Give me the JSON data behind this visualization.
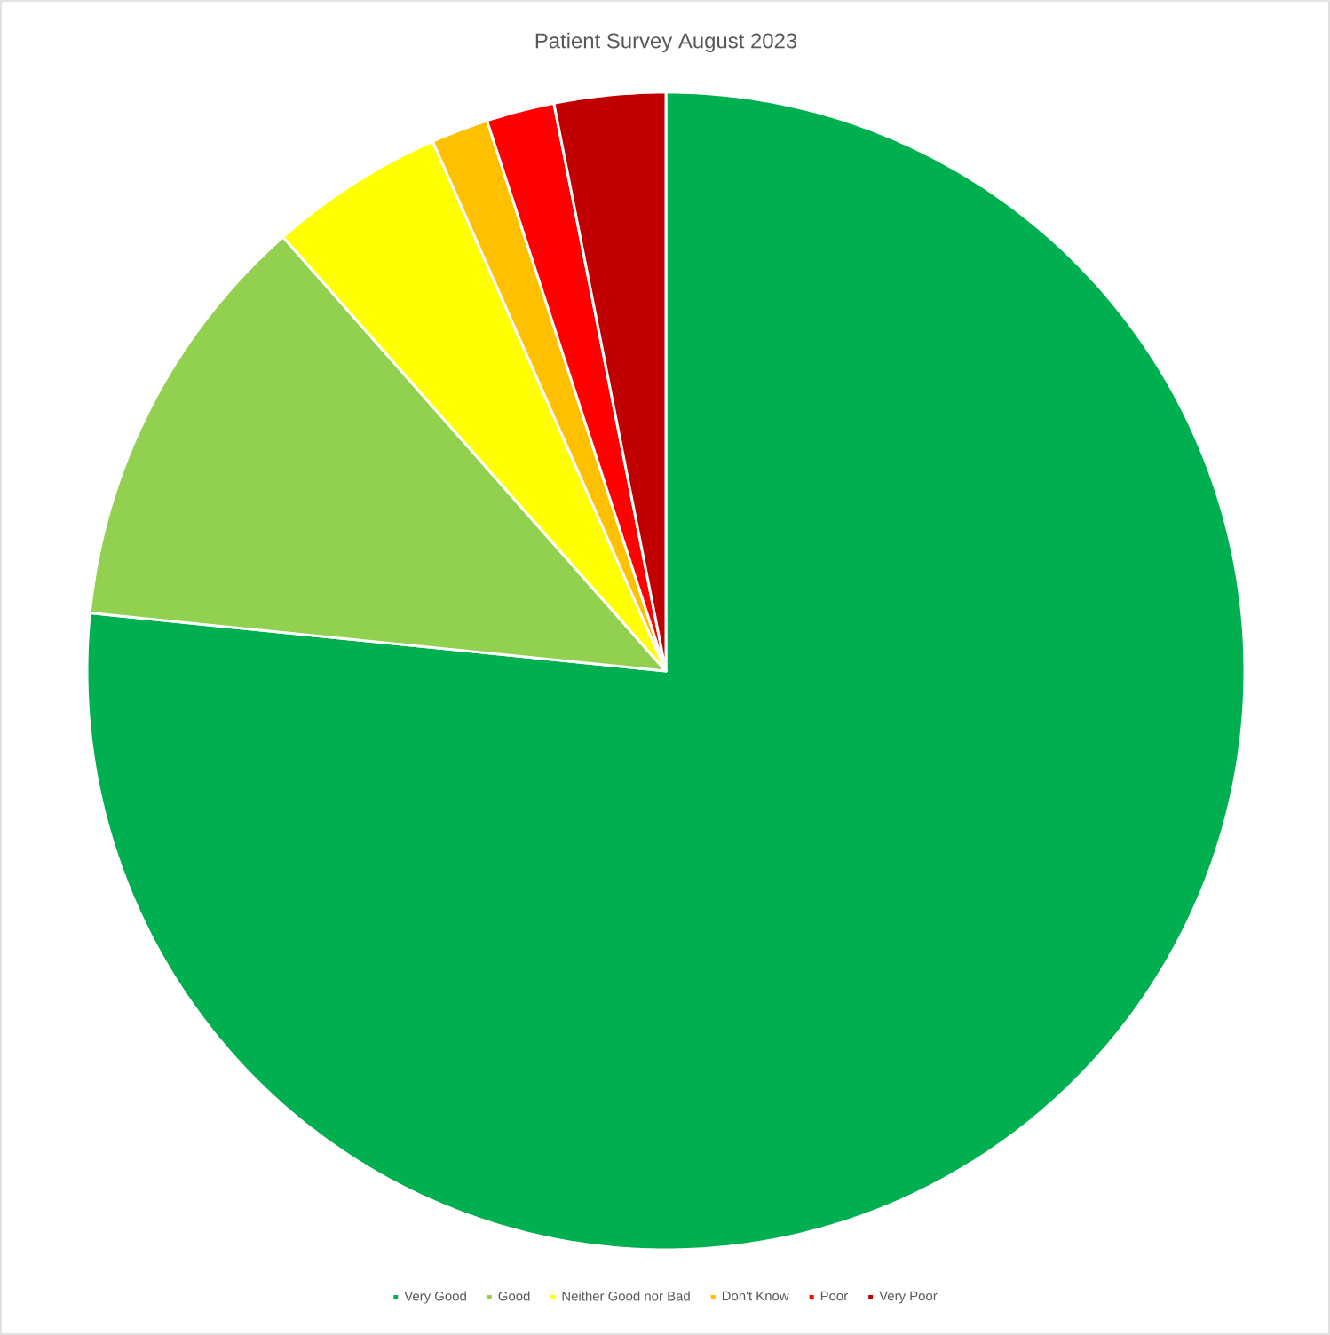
{
  "chart_data": {
    "type": "pie",
    "title": "Patient Survey August 2023",
    "categories": [
      "Very Good",
      "Good",
      "Neither Good nor Bad",
      "Don't Know",
      "Poor",
      "Very Poor"
    ],
    "values": [
      76.6,
      11.9,
      4.9,
      1.6,
      1.9,
      3.1
    ],
    "colors": [
      "#00b050",
      "#92d050",
      "#ffff00",
      "#ffc000",
      "#ff0000",
      "#c00000"
    ],
    "legend": "bottom"
  }
}
